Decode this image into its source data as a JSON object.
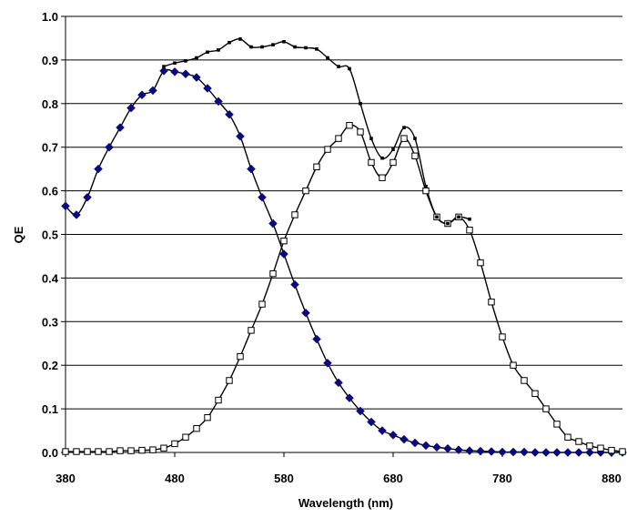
{
  "chart_data": {
    "type": "line",
    "title": "",
    "xlabel": "Wavelength (nm)",
    "ylabel": "QE",
    "xlim": [
      380,
      890
    ],
    "ylim": [
      0,
      1.0
    ],
    "x_ticks": [
      "380",
      "480",
      "580",
      "680",
      "780",
      "880"
    ],
    "y_ticks": [
      "0.0",
      "0.1",
      "0.2",
      "0.3",
      "0.4",
      "0.5",
      "0.6",
      "0.7",
      "0.8",
      "0.9",
      "1.0"
    ],
    "grid": "horizontal",
    "legend": "none",
    "colors": {
      "line": "#000000",
      "blue_marker": "#0a0a80",
      "open_marker": "#000000"
    },
    "series": [
      {
        "marker": "diamond-filled",
        "x": [
          380,
          390,
          400,
          410,
          420,
          430,
          440,
          450,
          460,
          470,
          480,
          490,
          500,
          510,
          520,
          530,
          540,
          550,
          560,
          570,
          580,
          590,
          600,
          610,
          620,
          630,
          640,
          650,
          660,
          670,
          680,
          690,
          700,
          710,
          720,
          730,
          740,
          750,
          760,
          770,
          780,
          790,
          800,
          810,
          820,
          830,
          840,
          850,
          860,
          870,
          880,
          890
        ],
        "y": [
          0.565,
          0.545,
          0.585,
          0.65,
          0.7,
          0.745,
          0.79,
          0.82,
          0.83,
          0.875,
          0.873,
          0.868,
          0.86,
          0.835,
          0.805,
          0.775,
          0.725,
          0.65,
          0.585,
          0.525,
          0.455,
          0.385,
          0.32,
          0.26,
          0.205,
          0.16,
          0.125,
          0.095,
          0.07,
          0.05,
          0.04,
          0.03,
          0.022,
          0.016,
          0.012,
          0.009,
          0.006,
          0.004,
          0.003,
          0.002,
          0.001,
          0.001,
          0.001,
          0.0,
          0.0,
          0.0,
          0.0,
          0.0,
          0.0,
          0.0,
          0.0,
          0.0
        ]
      },
      {
        "marker": "square-open",
        "x": [
          380,
          390,
          400,
          410,
          420,
          430,
          440,
          450,
          460,
          470,
          480,
          490,
          500,
          510,
          520,
          530,
          540,
          550,
          560,
          570,
          580,
          590,
          600,
          610,
          620,
          630,
          640,
          650,
          660,
          670,
          680,
          690,
          700,
          710,
          720,
          730,
          740,
          750,
          760,
          770,
          780,
          790,
          800,
          810,
          820,
          830,
          840,
          850,
          860,
          870,
          880,
          890
        ],
        "y": [
          0.002,
          0.002,
          0.002,
          0.002,
          0.002,
          0.004,
          0.004,
          0.005,
          0.006,
          0.01,
          0.02,
          0.035,
          0.055,
          0.08,
          0.12,
          0.165,
          0.22,
          0.28,
          0.34,
          0.41,
          0.485,
          0.545,
          0.6,
          0.655,
          0.695,
          0.72,
          0.75,
          0.735,
          0.665,
          0.63,
          0.665,
          0.72,
          0.68,
          0.6,
          0.54,
          0.525,
          0.54,
          0.51,
          0.435,
          0.345,
          0.265,
          0.2,
          0.165,
          0.135,
          0.1,
          0.065,
          0.035,
          0.025,
          0.015,
          0.01,
          0.005,
          0.002
        ]
      },
      {
        "marker": "small-square",
        "x": [
          470,
          480,
          490,
          500,
          510,
          520,
          530,
          540,
          550,
          560,
          570,
          580,
          590,
          600,
          610,
          620,
          630,
          640,
          650,
          660,
          670,
          680,
          690,
          700,
          710,
          720,
          730,
          740,
          750
        ],
        "y": [
          0.885,
          0.893,
          0.898,
          0.905,
          0.918,
          0.923,
          0.94,
          0.948,
          0.93,
          0.93,
          0.935,
          0.942,
          0.93,
          0.928,
          0.925,
          0.905,
          0.885,
          0.88,
          0.8,
          0.72,
          0.675,
          0.695,
          0.745,
          0.72,
          0.61,
          0.54,
          0.525,
          0.54,
          0.535
        ]
      }
    ]
  }
}
